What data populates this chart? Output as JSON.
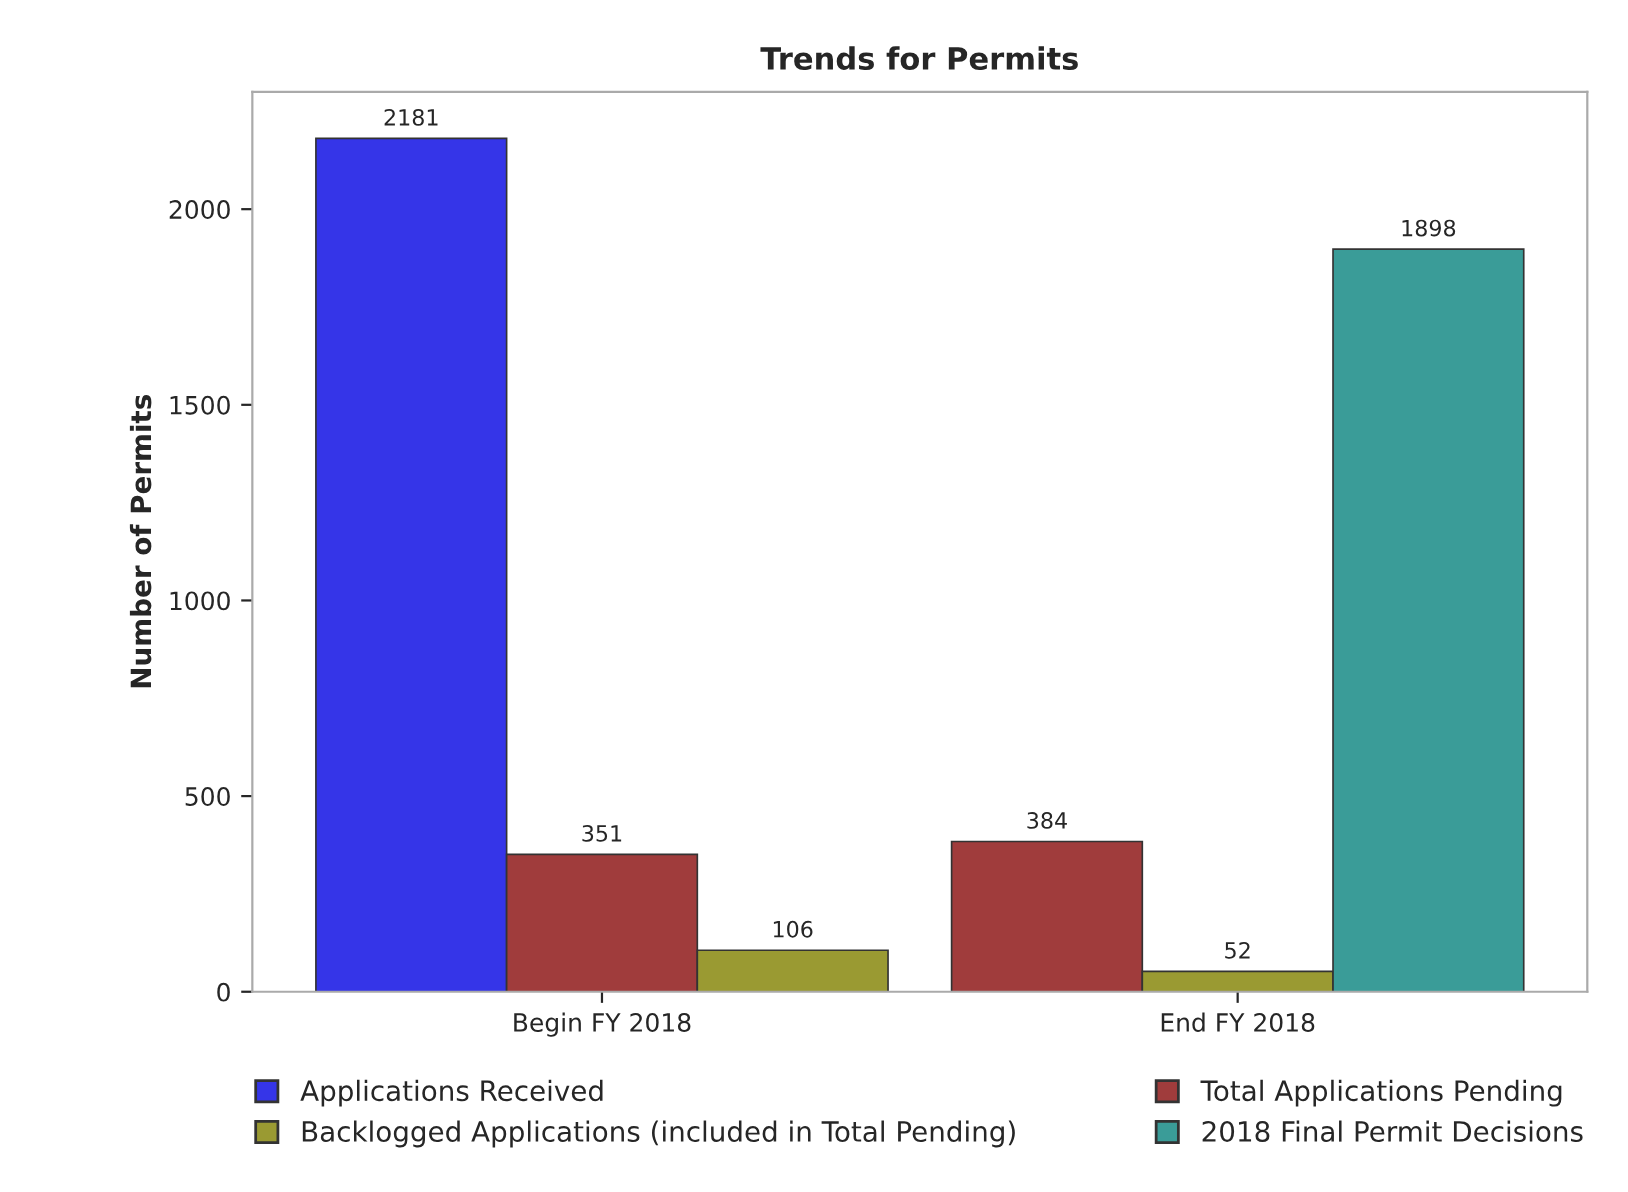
{
  "chart_data": {
    "type": "bar",
    "title": "Trends for Permits",
    "ylabel": "Number of Permits",
    "categories": [
      "Begin FY 2018",
      "End FY 2018"
    ],
    "series": [
      {
        "name": "Applications Received",
        "color": "#3535e8",
        "values": [
          2181,
          null
        ]
      },
      {
        "name": "Total Applications Pending",
        "color": "#a03c3c",
        "values": [
          351,
          384
        ]
      },
      {
        "name": "Backlogged Applications (included in Total Pending)",
        "color": "#9a9a32",
        "values": [
          106,
          52
        ]
      },
      {
        "name": "2018 Final Permit Decisions",
        "color": "#3a9c98",
        "values": [
          null,
          1898
        ]
      }
    ],
    "ylim": [
      0,
      2300
    ],
    "yticks": [
      0,
      500,
      1000,
      1500,
      2000
    ],
    "grid": false,
    "legend": "bottom",
    "data_labels": true
  }
}
